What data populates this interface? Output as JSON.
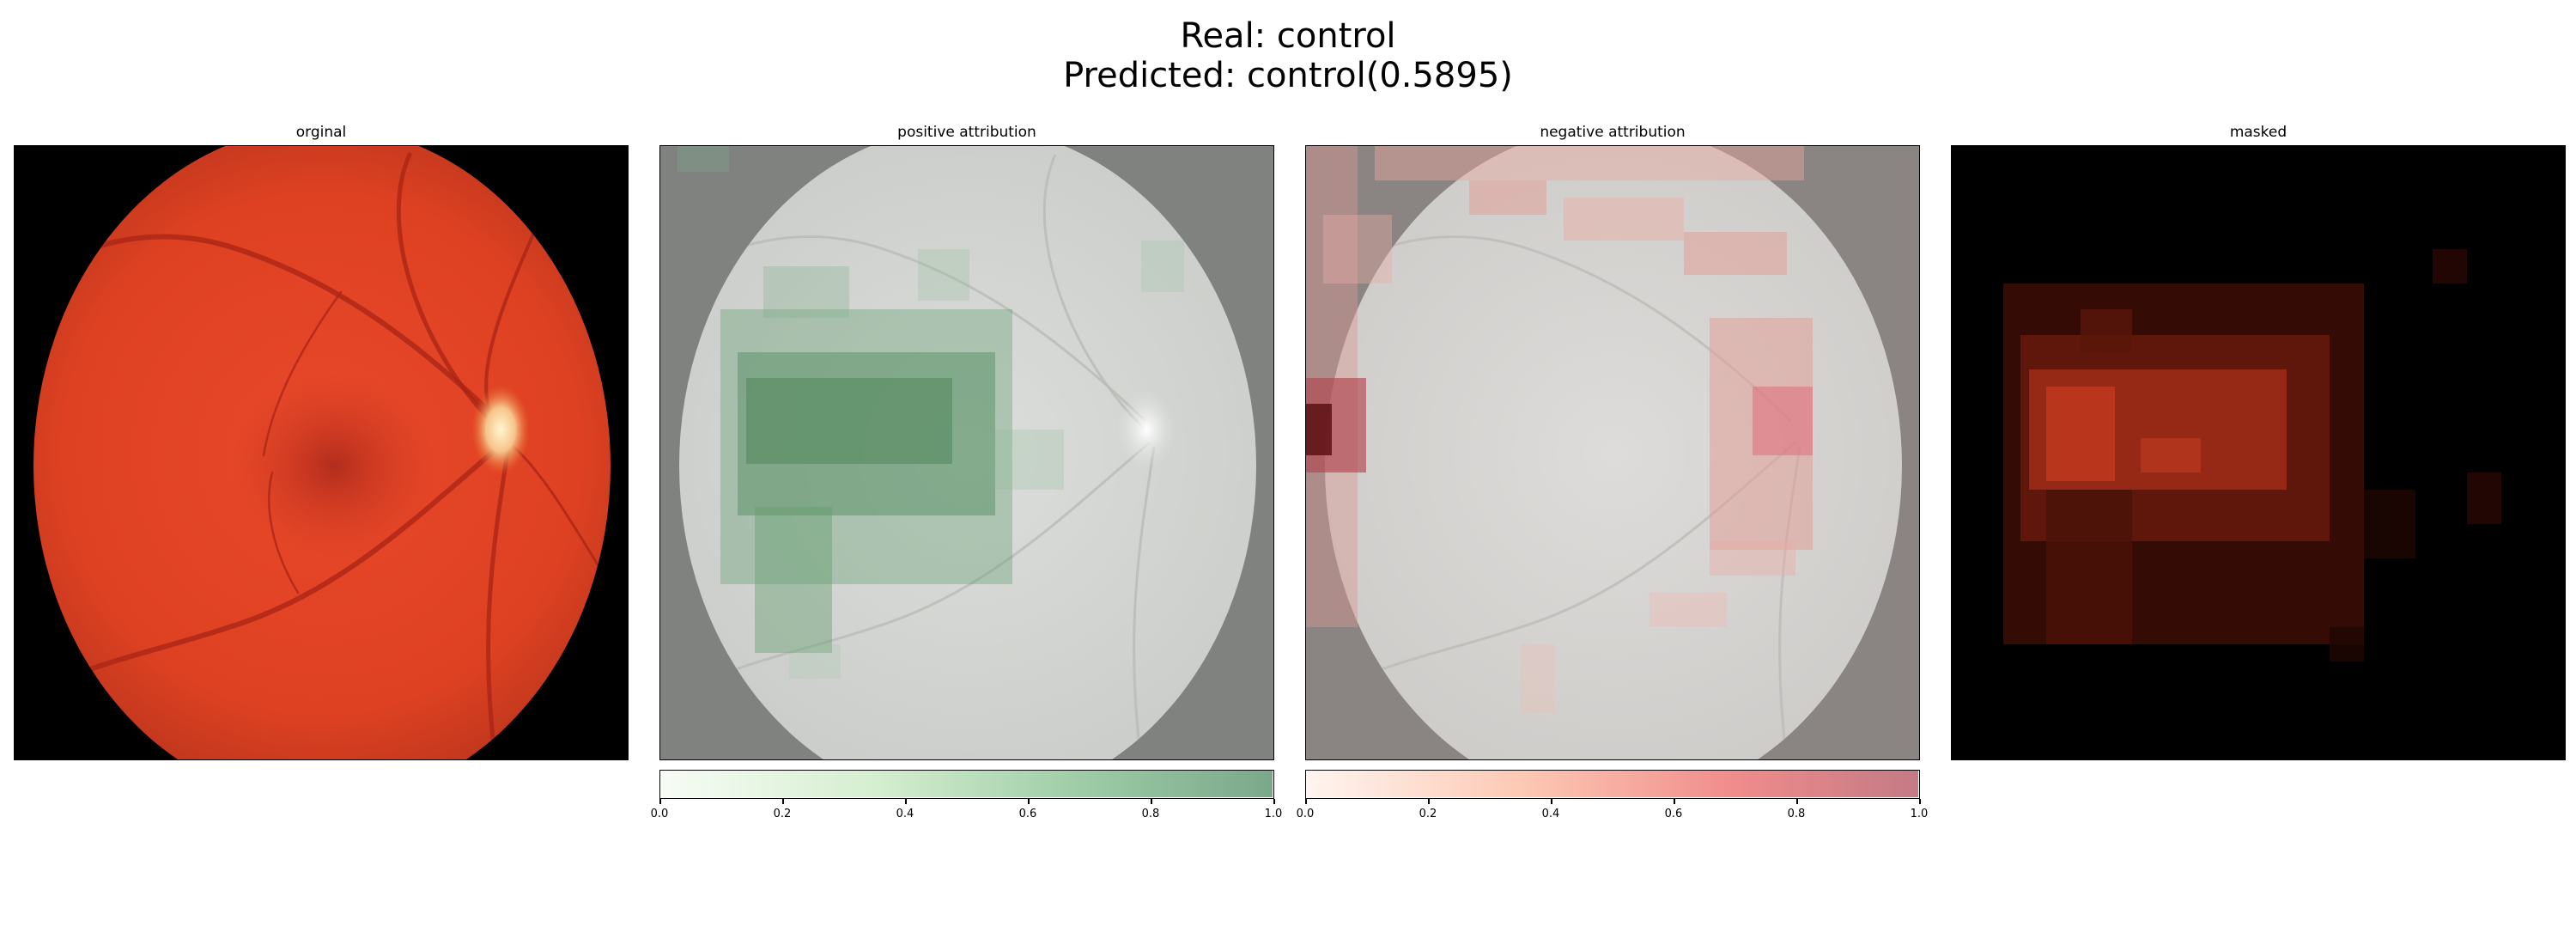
{
  "figure": {
    "title_line1": "Real: control",
    "title_line2": "Predicted: control(0.5895)"
  },
  "panels": [
    {
      "title": "orginal"
    },
    {
      "title": "positive attribution"
    },
    {
      "title": "negative attribution"
    },
    {
      "title": "masked"
    }
  ],
  "colorbars": {
    "positive": {
      "ticks": [
        "0.0",
        "0.2",
        "0.4",
        "0.6",
        "0.8",
        "1.0"
      ],
      "range": [
        0.0,
        1.0
      ],
      "colormap": "Greens",
      "color_low": "#f7fcf5",
      "color_high": "#7aa88a"
    },
    "negative": {
      "ticks": [
        "0.0",
        "0.2",
        "0.4",
        "0.6",
        "0.8",
        "1.0"
      ],
      "range": [
        0.0,
        1.0
      ],
      "colormap": "Reds",
      "color_low": "#fff5f0",
      "color_high": "#c47a85"
    }
  }
}
